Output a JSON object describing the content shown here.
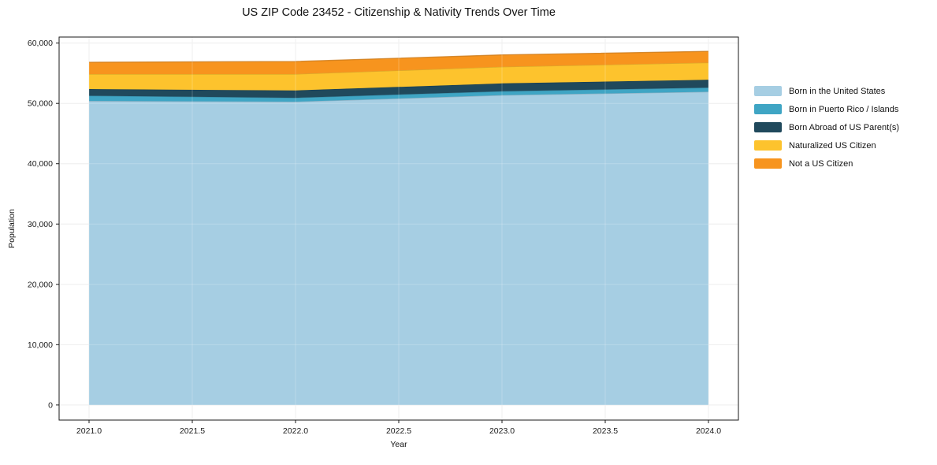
{
  "title": "US ZIP Code 23452 - Citizenship & Nativity Trends Over Time",
  "chart_data": {
    "type": "area",
    "stacked": true,
    "title": "US ZIP Code 23452 - Citizenship & Nativity Trends Over Time",
    "xlabel": "Year",
    "ylabel": "Population",
    "x": [
      2021,
      2022,
      2023,
      2024
    ],
    "series": [
      {
        "name": "Born in the United States",
        "color": "#a6cee3",
        "values": [
          50400,
          50280,
          51360,
          51930
        ]
      },
      {
        "name": "Born in Puerto Rico / Islands",
        "color": "#3fa5c4",
        "values": [
          870,
          650,
          650,
          680
        ]
      },
      {
        "name": "Born Abroad of US Parent(s)",
        "color": "#20495c",
        "values": [
          1100,
          1220,
          1310,
          1310
        ]
      },
      {
        "name": "Naturalized US Citizen",
        "color": "#fdc32d",
        "values": [
          2490,
          2710,
          2750,
          2840
        ]
      },
      {
        "name": "Not a US Citizen",
        "color": "#f7941e",
        "values": [
          1960,
          2090,
          1970,
          1870
        ]
      }
    ],
    "stacked_totals": [
      56820,
      56950,
      58040,
      58630
    ],
    "xticks": [
      2021.0,
      2021.5,
      2022.0,
      2022.5,
      2023.0,
      2023.5,
      2024.0
    ],
    "xtick_labels": [
      "2021.0",
      "2021.5",
      "2022.0",
      "2022.5",
      "2023.0",
      "2023.5",
      "2024.0"
    ],
    "yticks": [
      0,
      10000,
      20000,
      30000,
      40000,
      50000,
      60000
    ],
    "ytick_labels": [
      "0",
      "10,000",
      "20,000",
      "30,000",
      "40,000",
      "50,000",
      "60,000"
    ],
    "xlim": [
      2020.855,
      2024.145
    ],
    "ylim": [
      -2500,
      61000
    ],
    "grid": true,
    "legend_position": "right-outside",
    "colors": {
      "grid": "#ebebeb",
      "spine": "#1a1a1a",
      "text": "#1a1a1a",
      "background": "#ffffff"
    }
  }
}
